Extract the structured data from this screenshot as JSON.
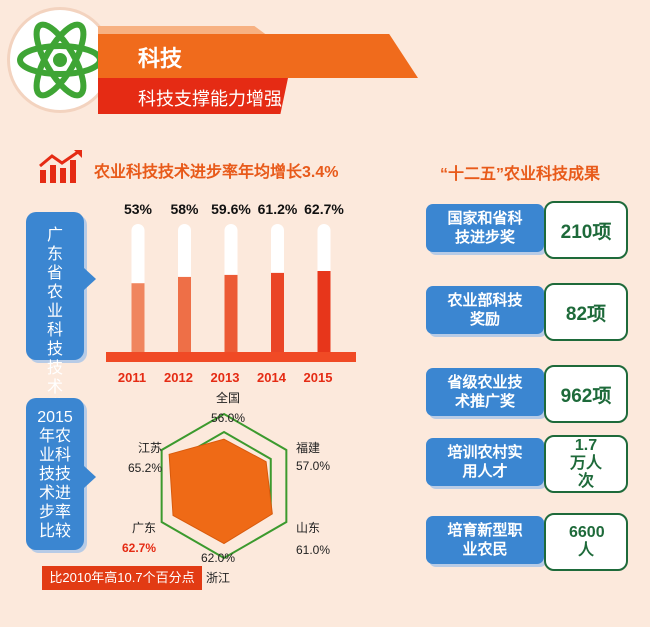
{
  "header": {
    "title": "科技",
    "subtitle": "科技支撑能力增强",
    "icon": "atom-icon"
  },
  "bar_section": {
    "heading": "农业科技技术进步率年均增长3.4%",
    "side_label": "广东省农业科技技术进步率",
    "icon": "rising-chart-icon"
  },
  "radar_section": {
    "side_label": "2015年农业科技技术进步率比较",
    "note": "比2010年高10.7个百分点"
  },
  "achievements": {
    "heading": "“十二五”农业科技成果",
    "items": [
      {
        "label": "国家和省科技进步奖",
        "value": "210项"
      },
      {
        "label": "农业部科技奖励",
        "value": "82项"
      },
      {
        "label": "省级农业技术推广奖",
        "value": "962项"
      },
      {
        "label": "培训农村实用人才",
        "value": "1.7万人次"
      },
      {
        "label": "培育新型职业农民",
        "value": "6600人"
      }
    ]
  },
  "colors": {
    "orange": "#f06b1c",
    "red": "#e52b14",
    "blue": "#3b86d1",
    "green": "#1e6a3a",
    "radar_fill": "#ef6a16",
    "radar_grid": "#3c9a2e"
  },
  "chart_data": [
    {
      "type": "bar",
      "categories": [
        "2011",
        "2012",
        "2013",
        "2014",
        "2015"
      ],
      "values": [
        53,
        58,
        59.6,
        61.2,
        62.7
      ],
      "data_labels": [
        "53%",
        "58%",
        "59.6%",
        "61.2%",
        "62.7%"
      ],
      "ylim": [
        0,
        100
      ]
    },
    {
      "type": "radar",
      "categories": [
        "全国",
        "福建",
        "山东",
        "浙江",
        "广东",
        "江苏"
      ],
      "values": [
        56.0,
        57.0,
        61.0,
        62.0,
        62.7,
        65.2
      ],
      "data_labels": [
        "56.0%",
        "57.0%",
        "61.0%",
        "62.0%",
        "62.7%",
        "65.2%"
      ],
      "highlight": "广东"
    }
  ]
}
